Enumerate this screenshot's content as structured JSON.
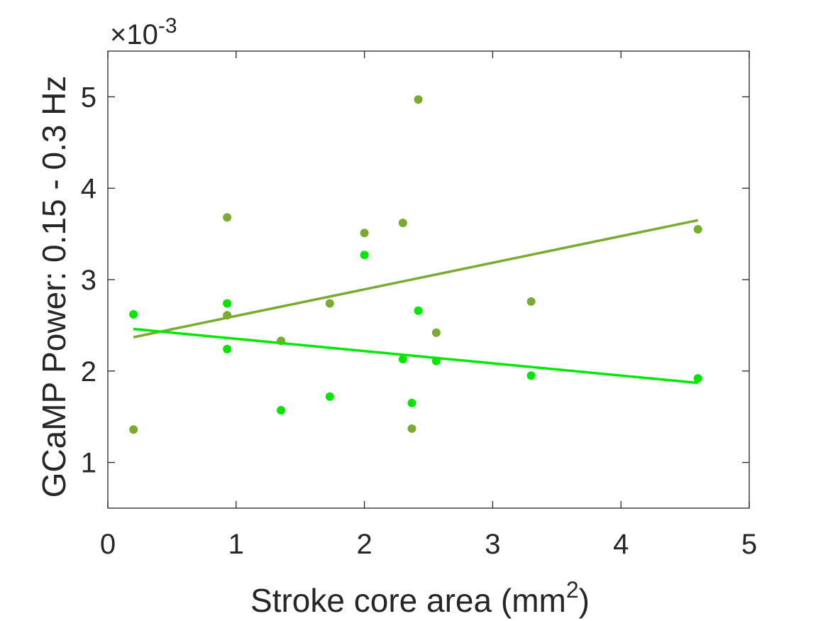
{
  "chart_data": {
    "type": "scatter",
    "title": "",
    "xlabel": "Stroke core area (mm",
    "xlabel_superscript": "2",
    "xlabel_suffix": ")",
    "ylabel": "GCaMP Power: 0.15 - 0.3 Hz",
    "y_exponent_prefix": "×10",
    "y_exponent": "-3",
    "xlim": [
      0,
      5
    ],
    "ylim": [
      0.5,
      5.5
    ],
    "y_scale_factor": 0.001,
    "xticks": [
      0,
      1,
      2,
      3,
      4,
      5
    ],
    "xtick_labels": [
      "0",
      "1",
      "2",
      "3",
      "4",
      "5"
    ],
    "yticks": [
      1,
      2,
      3,
      4,
      5
    ],
    "ytick_labels": [
      "1",
      "2",
      "3",
      "4",
      "5"
    ],
    "grid": false,
    "box": true,
    "series": [
      {
        "color": "#78ab30",
        "points": [
          [
            0.2,
            1.36
          ],
          [
            0.93,
            3.68
          ],
          [
            0.93,
            2.61
          ],
          [
            1.35,
            2.33
          ],
          [
            1.73,
            2.74
          ],
          [
            2.0,
            3.51
          ],
          [
            2.3,
            3.62
          ],
          [
            2.37,
            1.37
          ],
          [
            2.42,
            4.97
          ],
          [
            2.56,
            2.42
          ],
          [
            3.3,
            2.76
          ],
          [
            4.6,
            3.55
          ]
        ],
        "fit": {
          "x": [
            0.2,
            4.6
          ],
          "y": [
            2.37,
            3.65
          ]
        }
      },
      {
        "color": "#00e800",
        "points": [
          [
            0.2,
            2.62
          ],
          [
            0.93,
            2.74
          ],
          [
            0.93,
            2.24
          ],
          [
            1.35,
            1.57
          ],
          [
            1.73,
            1.72
          ],
          [
            2.0,
            3.27
          ],
          [
            2.3,
            2.13
          ],
          [
            2.37,
            1.65
          ],
          [
            2.42,
            2.66
          ],
          [
            2.56,
            2.11
          ],
          [
            3.3,
            1.95
          ],
          [
            4.6,
            1.92
          ]
        ],
        "fit": {
          "x": [
            0.2,
            4.6
          ],
          "y": [
            2.46,
            1.87
          ]
        }
      }
    ]
  }
}
